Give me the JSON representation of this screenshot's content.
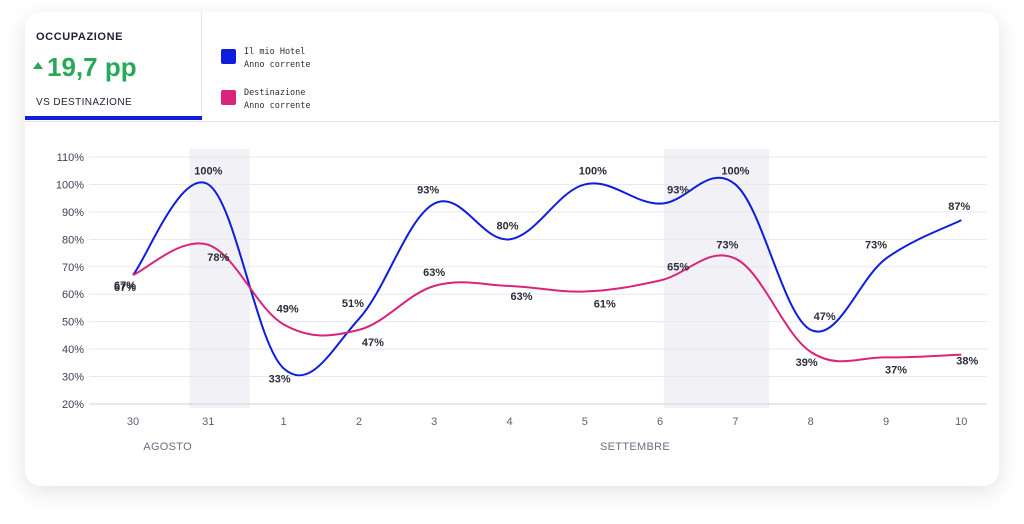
{
  "kpi": {
    "title": "OCCUPAZIONE",
    "value": "19,7 pp",
    "trend": "up",
    "subtitle": "VS DESTINAZIONE"
  },
  "legend": [
    {
      "line1": "Il mio Hotel",
      "line2": "Anno corrente",
      "color": "#0f1ddc"
    },
    {
      "line1": "Destinazione",
      "line2": "Anno corrente",
      "color": "#d9247a"
    }
  ],
  "chart_data": {
    "type": "line",
    "x": [
      "30",
      "31",
      "1",
      "2",
      "3",
      "4",
      "5",
      "6",
      "7",
      "8",
      "9",
      "10"
    ],
    "x_groups": [
      {
        "label": "AGOSTO",
        "start": 0,
        "end": 1
      },
      {
        "label": "SETTEMBRE",
        "start": 2,
        "end": 11
      }
    ],
    "ylim": [
      20,
      110
    ],
    "yticks": [
      20,
      30,
      40,
      50,
      60,
      70,
      80,
      90,
      100,
      110
    ],
    "y_tick_suffix": "%",
    "grid": true,
    "highlight_bands": [
      [
        0.75,
        1.55
      ],
      [
        7.05,
        8.45
      ]
    ],
    "series": [
      {
        "name": "Il mio Hotel",
        "color": "#0f1ddc",
        "values": [
          67,
          100,
          33,
          51,
          93,
          80,
          100,
          93,
          100,
          47,
          73,
          87
        ],
        "labels": [
          "67%",
          "100%",
          "33%",
          "51%",
          "93%",
          "80%",
          "100%",
          "93%",
          "100%",
          "47%",
          "73%",
          "87%"
        ]
      },
      {
        "name": "Destinazione",
        "color": "#d9247a",
        "values": [
          67,
          78,
          49,
          47,
          63,
          63,
          61,
          65,
          73,
          39,
          37,
          38
        ],
        "labels": [
          "67%",
          "78%",
          "49%",
          "47%",
          "63%",
          "63%",
          "61%",
          "65%",
          "73%",
          "39%",
          "37%",
          "38%"
        ]
      }
    ]
  }
}
